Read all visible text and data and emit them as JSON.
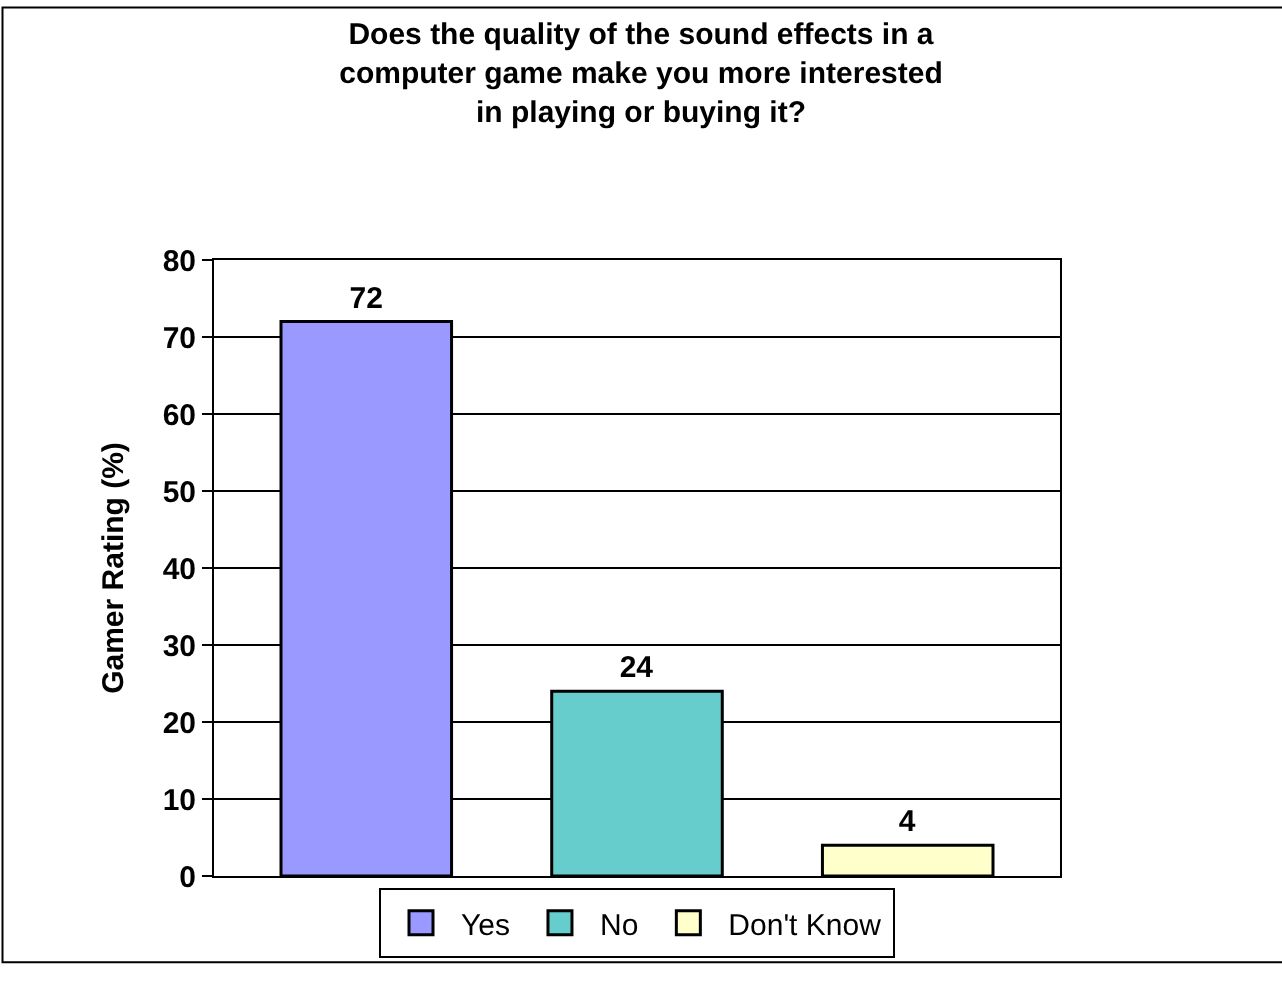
{
  "chart_data": {
    "type": "bar",
    "title": "Does the quality of the sound effects in a\ncomputer game make you more interested\nin playing or buying it?",
    "ylabel": "Gamer Rating (%)",
    "categories": [
      null
    ],
    "series": [
      {
        "name": "Yes",
        "color": "#9999ff",
        "values": [
          72
        ]
      },
      {
        "name": "No",
        "color": "#66cccc",
        "values": [
          24
        ]
      },
      {
        "name": "Don't Know",
        "color": "#ffffcc",
        "values": [
          4
        ]
      }
    ],
    "ylim": [
      0,
      80
    ],
    "yticks": [
      0,
      10,
      20,
      30,
      40,
      50,
      60,
      70,
      80
    ],
    "grid": "y",
    "legend": "bottom",
    "tick_labels": "y",
    "data_labels": true
  }
}
